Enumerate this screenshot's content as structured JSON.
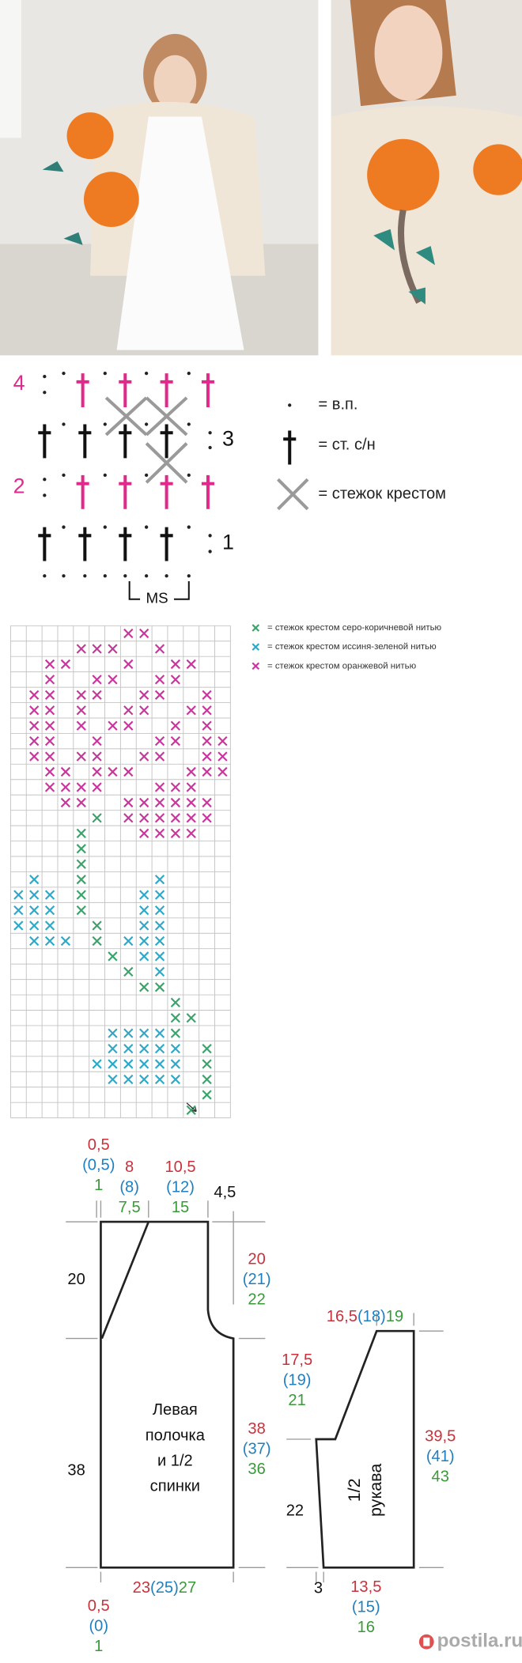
{
  "symbol_chart": {
    "row_labels": [
      "4",
      "3",
      "2",
      "1"
    ],
    "repeat_label": "MS",
    "legend": [
      "= в.п.",
      "= ст. с/н",
      "= стежок крестом"
    ]
  },
  "cross_stitch_legend": [
    "= стежок крестом серо-коричневой нитью",
    "= стежок крестом иссиня-зеленой нитью",
    "= стежок крестом оранжевой нитью"
  ],
  "schematic": {
    "body": {
      "label": [
        "Левая",
        "полочка",
        "и 1/2",
        "спинки"
      ],
      "neck_offset": [
        "0,5",
        "(0,5)",
        "1"
      ],
      "neck_width": [
        "8",
        "(8)",
        "7,5"
      ],
      "shoulder": [
        "10,5",
        "(12)",
        "15"
      ],
      "shoulder_drop": "4,5",
      "armhole_left": "20",
      "armhole": [
        "20",
        "(21)",
        "22"
      ],
      "side_left": "38",
      "side": [
        "38",
        "(37)",
        "36"
      ],
      "hem_offset": [
        "0,5",
        "(0)",
        "1"
      ],
      "width": [
        "23",
        "(25)",
        "27"
      ]
    },
    "sleeve": {
      "label": [
        "1/2",
        "рукава"
      ],
      "top": [
        "16,5",
        "(18)",
        "19"
      ],
      "cap": [
        "17,5",
        "(19)",
        "21"
      ],
      "length": [
        "39,5",
        "(41)",
        "43"
      ],
      "lower": "22",
      "cuff_step": "3",
      "cuff": [
        "13,5",
        "(15)",
        "16"
      ]
    }
  },
  "watermark": "postila.ru"
}
